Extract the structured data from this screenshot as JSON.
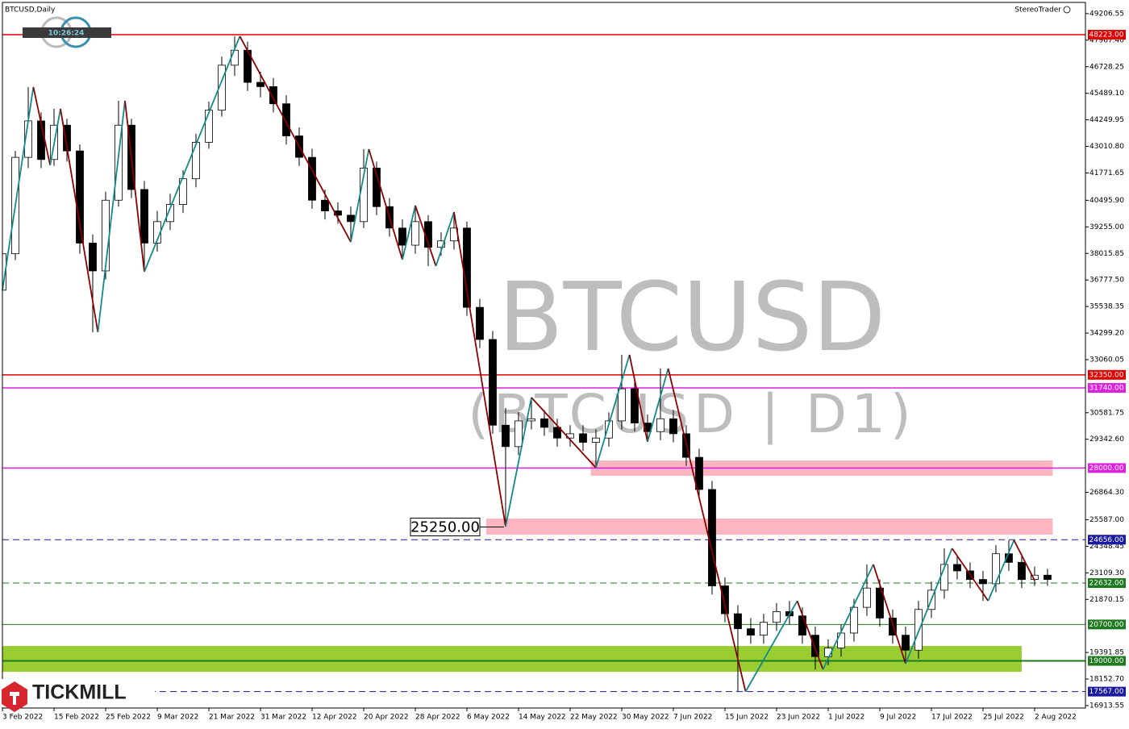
{
  "chart_data": {
    "type": "candlestick",
    "title": "BTCUSD,Daily",
    "provider": "StereoTrader",
    "clock": "10:26:24",
    "logo_text": "TICKMILL",
    "watermark": "BTCUSD",
    "watermark_sub": "(BTCUSD | D1)",
    "up_color": "#ffffff",
    "down_color": "#000000",
    "categories": [
      "3 Feb 2022",
      null,
      null,
      null,
      "15 Feb 2022",
      null,
      null,
      null,
      "25 Feb 2022",
      null,
      null,
      null,
      "9 Mar 2022",
      null,
      null,
      null,
      "21 Mar 2022",
      null,
      null,
      null,
      "31 Mar 2022",
      null,
      null,
      null,
      "12 Apr 2022",
      null,
      null,
      null,
      "20 Apr 2022",
      null,
      null,
      null,
      "28 Apr 2022",
      null,
      null,
      null,
      "6 May 2022",
      null,
      null,
      null,
      "14 May 2022",
      null,
      null,
      null,
      "22 May 2022",
      null,
      null,
      null,
      "30 May 2022",
      null,
      null,
      null,
      "7 Jun 2022",
      null,
      null,
      null,
      "15 Jun 2022",
      null,
      null,
      null,
      "23 Jun 2022",
      null,
      null,
      null,
      "1 Jul 2022",
      null,
      null,
      null,
      "9 Jul 2022",
      null,
      null,
      null,
      "17 Jul 2022",
      null,
      null,
      null,
      "25 Jul 2022",
      null,
      null,
      null,
      "2 Aug 2022",
      null
    ],
    "ohlc": [
      [
        36300,
        38300,
        36000,
        38000
      ],
      [
        38000,
        42800,
        37700,
        42500
      ],
      [
        42500,
        45781,
        42000,
        44200
      ],
      [
        44200,
        44600,
        42000,
        42400
      ],
      [
        42400,
        44765,
        42100,
        44000
      ],
      [
        44000,
        44300,
        42300,
        42800
      ],
      [
        42800,
        43100,
        38000,
        38500
      ],
      [
        38500,
        38900,
        34340,
        37200
      ],
      [
        37200,
        40900,
        36800,
        40500
      ],
      [
        40500,
        45140,
        40200,
        44000
      ],
      [
        44000,
        44300,
        40600,
        41000
      ],
      [
        41000,
        41400,
        37160,
        38500
      ],
      [
        38500,
        40000,
        38100,
        39500
      ],
      [
        39500,
        40800,
        39100,
        40300
      ],
      [
        40300,
        41900,
        39900,
        41500
      ],
      [
        41500,
        43600,
        41100,
        43200
      ],
      [
        43200,
        45100,
        42900,
        44700
      ],
      [
        44700,
        47200,
        44400,
        46800
      ],
      [
        46800,
        48150,
        46300,
        47500
      ],
      [
        47500,
        47900,
        45600,
        46000
      ],
      [
        46000,
        46500,
        45300,
        45800
      ],
      [
        45800,
        46200,
        44600,
        45000
      ],
      [
        45000,
        45400,
        43100,
        43500
      ],
      [
        43500,
        43900,
        42100,
        42500
      ],
      [
        42500,
        42900,
        40100,
        40500
      ],
      [
        40500,
        41000,
        39600,
        40000
      ],
      [
        40000,
        40400,
        39400,
        39800
      ],
      [
        39800,
        40200,
        38550,
        39500
      ],
      [
        39500,
        42880,
        39200,
        42000
      ],
      [
        42000,
        42300,
        39800,
        40200
      ],
      [
        40200,
        40600,
        38800,
        39200
      ],
      [
        39200,
        39600,
        37725,
        38400
      ],
      [
        38400,
        40248,
        38000,
        39500
      ],
      [
        39500,
        39800,
        37425,
        38300
      ],
      [
        38300,
        39000,
        37900,
        38600
      ],
      [
        38600,
        39945,
        38200,
        39200
      ],
      [
        39200,
        39500,
        35100,
        35500
      ],
      [
        35500,
        35900,
        33600,
        34000
      ],
      [
        34000,
        34400,
        29600,
        30000
      ],
      [
        30000,
        30800,
        25270,
        29000
      ],
      [
        29000,
        30600,
        28600,
        30200
      ],
      [
        30200,
        31290,
        29800,
        30300
      ],
      [
        30300,
        30700,
        29500,
        29900
      ],
      [
        29900,
        30300,
        29000,
        29400
      ],
      [
        29400,
        30000,
        29000,
        29600
      ],
      [
        29600,
        30000,
        28800,
        29200
      ],
      [
        29200,
        29800,
        28016,
        29400
      ],
      [
        29400,
        30600,
        29000,
        30200
      ],
      [
        30200,
        33284,
        29800,
        31700
      ],
      [
        31700,
        32100,
        29700,
        30100
      ],
      [
        30100,
        30500,
        29220,
        29700
      ],
      [
        29700,
        32645,
        29300,
        30300
      ],
      [
        30300,
        30700,
        29200,
        29600
      ],
      [
        29600,
        30000,
        28100,
        28500
      ],
      [
        28500,
        28900,
        26600,
        27000
      ],
      [
        27000,
        27400,
        22100,
        22500
      ],
      [
        22500,
        22900,
        20800,
        21200
      ],
      [
        21200,
        21600,
        17567,
        20500
      ],
      [
        20500,
        21000,
        19800,
        20200
      ],
      [
        20200,
        21200,
        19800,
        20800
      ],
      [
        20800,
        21700,
        20400,
        21300
      ],
      [
        21300,
        21800,
        20700,
        21100
      ],
      [
        21100,
        21500,
        19800,
        20200
      ],
      [
        20200,
        20600,
        18600,
        19200
      ],
      [
        19200,
        20000,
        18800,
        19600
      ],
      [
        19600,
        20700,
        19200,
        20300
      ],
      [
        20300,
        21900,
        19900,
        21500
      ],
      [
        21500,
        23500,
        21100,
        22400
      ],
      [
        22400,
        22800,
        20600,
        21000
      ],
      [
        21000,
        21400,
        19800,
        20200
      ],
      [
        20200,
        20600,
        18870,
        19500
      ],
      [
        19500,
        21800,
        19100,
        21400
      ],
      [
        21400,
        22700,
        21000,
        22300
      ],
      [
        22300,
        24250,
        21900,
        23500
      ],
      [
        23500,
        23900,
        22800,
        23200
      ],
      [
        23200,
        23600,
        22400,
        22800
      ],
      [
        22800,
        23200,
        21800,
        22600
      ],
      [
        22600,
        24400,
        22200,
        24000
      ],
      [
        24000,
        24630,
        23200,
        23600
      ],
      [
        23600,
        24000,
        22400,
        22800
      ],
      [
        22800,
        23400,
        22500,
        23000
      ],
      [
        23000,
        23300,
        22500,
        22800
      ]
    ],
    "zigzag": {
      "up_color": "#138a8a",
      "down_color": "#8b0000",
      "x": [
        0,
        2.4,
        3.7,
        4.5,
        7.4,
        9.5,
        11,
        18.4,
        27,
        28.4,
        31,
        32,
        33.6,
        35,
        39,
        41,
        46,
        48.6,
        50,
        51.6,
        57.6,
        61.6,
        63.6,
        67.5,
        70,
        73.6,
        76.4,
        78.4,
        80
      ],
      "values": [
        36300,
        45781,
        42130,
        44765,
        34340,
        45140,
        37160,
        48150,
        38550,
        42880,
        37725,
        40248,
        37425,
        39945,
        25270,
        31290,
        28016,
        33284,
        29220,
        32645,
        17567,
        21800,
        18600,
        23500,
        18870,
        24250,
        21800,
        24630,
        22750
      ]
    },
    "levels": [
      {
        "value": 48223,
        "label": "48223.00",
        "color": "#e00000",
        "dash": false,
        "width": 1.5
      },
      {
        "value": 32350,
        "label": "32350.00",
        "color": "#e00000",
        "dash": false,
        "width": 1.5
      },
      {
        "value": 31740,
        "label": "31740.00",
        "color": "#e020e0",
        "dash": false,
        "width": 1.5
      },
      {
        "value": 28000,
        "label": "28000.00",
        "color": "#e020e0",
        "dash": false,
        "width": 1.5
      },
      {
        "value": 24656,
        "label": "24656.00",
        "color": "#1a1aa0",
        "dash": true,
        "width": 1
      },
      {
        "value": 22632,
        "label": "22632.00",
        "color": "#1e7a1e",
        "dash": true,
        "width": 1
      },
      {
        "value": 20700,
        "label": "20700.00",
        "color": "#1e7a1e",
        "dash": false,
        "width": 1
      },
      {
        "value": 19000,
        "label": "19000.00",
        "color": "#1e7a1e",
        "dash": false,
        "width": 2
      },
      {
        "value": 17567,
        "label": "17567.00",
        "color": "#1a1aa0",
        "dash": true,
        "width": 1
      }
    ],
    "zones": [
      {
        "from": 27638,
        "to": 28354,
        "x": [
          45.6,
          81.4
        ],
        "color": "#ffb6c1"
      },
      {
        "from": 24890,
        "to": 25643,
        "x": [
          37.5,
          81.4
        ],
        "color": "#ffb6c1"
      },
      {
        "from": 18491,
        "to": 19695,
        "x": [
          0,
          79
        ],
        "color": "#9acd32"
      }
    ],
    "annotation": {
      "label": "25250.00",
      "value": 25250,
      "x": 37
    },
    "xlim": [
      0,
      83.94
    ],
    "ylim": [
      16800,
      49730
    ],
    "yticks": [
      {
        "value": 49206.55,
        "label": "49206.55"
      },
      {
        "value": 47967.4,
        "label": "47967.40"
      },
      {
        "value": 46728.25,
        "label": "46728.25"
      },
      {
        "value": 45489.1,
        "label": "45489.10"
      },
      {
        "value": 44249.95,
        "label": "44249.95"
      },
      {
        "value": 43010.8,
        "label": "43010.80"
      },
      {
        "value": 41771.65,
        "label": "41771.65"
      },
      {
        "value": 40495.9,
        "label": "40495.90"
      },
      {
        "value": 39255,
        "label": "39255.00"
      },
      {
        "value": 38015.85,
        "label": "38015.85"
      },
      {
        "value": 36777.5,
        "label": "36777.50"
      },
      {
        "value": 35538.35,
        "label": "35538.35"
      },
      {
        "value": 34299.2,
        "label": "34299.20"
      },
      {
        "value": 33060.05,
        "label": "33060.05"
      },
      {
        "value": 30581.75,
        "label": "30581.75"
      },
      {
        "value": 29342.6,
        "label": "29342.60"
      },
      {
        "value": 26864.3,
        "label": "26864.30"
      },
      {
        "value": 25587,
        "label": "25587.00"
      },
      {
        "value": 24348.45,
        "label": "24348.45"
      },
      {
        "value": 23109.3,
        "label": "23109.30"
      },
      {
        "value": 21870.15,
        "label": "21870.15"
      },
      {
        "value": 19391.85,
        "label": "19391.85"
      },
      {
        "value": 18152.7,
        "label": "18152.70"
      },
      {
        "value": 16913.55,
        "label": "16913.55"
      }
    ]
  }
}
